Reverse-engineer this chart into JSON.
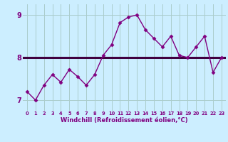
{
  "xlabel": "Windchill (Refroidissement éolien,°C)",
  "x_values": [
    0,
    1,
    2,
    3,
    4,
    5,
    6,
    7,
    8,
    9,
    10,
    11,
    12,
    13,
    14,
    15,
    16,
    17,
    18,
    19,
    20,
    21,
    22,
    23
  ],
  "y_values": [
    7.2,
    7.0,
    7.35,
    7.6,
    7.42,
    7.72,
    7.55,
    7.35,
    7.6,
    8.05,
    8.3,
    8.82,
    8.95,
    9.0,
    8.65,
    8.45,
    8.25,
    8.5,
    8.05,
    8.0,
    8.25,
    8.5,
    7.65,
    8.0
  ],
  "mean_value": 8.0,
  "line_color": "#800080",
  "mean_color": "#400040",
  "bg_color": "#cceeff",
  "grid_color": "#aacccc",
  "ylim": [
    6.75,
    9.25
  ],
  "xlim": [
    -0.5,
    23.5
  ],
  "yticks": [
    7,
    8,
    9
  ],
  "xtick_labels": [
    "0",
    "1",
    "2",
    "3",
    "4",
    "5",
    "6",
    "7",
    "8",
    "9",
    "10",
    "11",
    "12",
    "13",
    "14",
    "15",
    "16",
    "17",
    "18",
    "19",
    "20",
    "21",
    "22",
    "23"
  ],
  "marker": "D",
  "markersize": 2.5,
  "linewidth": 1.0,
  "mean_linewidth": 2.2,
  "xlabel_fontsize": 6.0,
  "ytick_fontsize": 7.0,
  "xtick_fontsize": 4.8
}
